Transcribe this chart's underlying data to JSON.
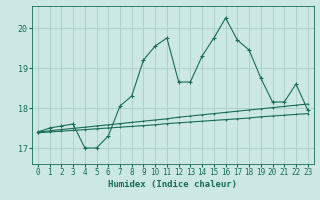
{
  "xlabel": "Humidex (Indice chaleur)",
  "ylabel": "",
  "background_color": "#cce8e4",
  "grid_color": "#aacccc",
  "line_color": "#1a6b5a",
  "xlim": [
    -0.5,
    23.5
  ],
  "ylim": [
    16.6,
    20.55
  ],
  "xticks": [
    0,
    1,
    2,
    3,
    4,
    5,
    6,
    7,
    8,
    9,
    10,
    11,
    12,
    13,
    14,
    15,
    16,
    17,
    18,
    19,
    20,
    21,
    22,
    23
  ],
  "yticks": [
    17,
    18,
    19,
    20
  ],
  "main_x": [
    0,
    1,
    2,
    3,
    4,
    5,
    6,
    7,
    8,
    9,
    10,
    11,
    12,
    13,
    14,
    15,
    16,
    17,
    18,
    19,
    20,
    21,
    22,
    23
  ],
  "main_y": [
    17.4,
    17.5,
    17.55,
    17.6,
    17.0,
    17.0,
    17.3,
    18.05,
    18.3,
    19.2,
    19.55,
    19.75,
    18.65,
    18.65,
    19.3,
    19.75,
    20.25,
    19.7,
    19.45,
    18.75,
    18.15,
    18.15,
    18.6,
    17.95
  ],
  "line2_x": [
    0,
    1,
    2,
    3,
    4,
    5,
    6,
    7,
    8,
    9,
    10,
    11,
    12,
    13,
    14,
    15,
    16,
    17,
    18,
    19,
    20,
    21,
    22,
    23
  ],
  "line2_y": [
    17.4,
    17.43,
    17.46,
    17.49,
    17.52,
    17.55,
    17.58,
    17.61,
    17.64,
    17.67,
    17.7,
    17.73,
    17.77,
    17.8,
    17.83,
    17.86,
    17.89,
    17.92,
    17.95,
    17.98,
    18.01,
    18.04,
    18.07,
    18.1
  ],
  "line3_x": [
    0,
    1,
    2,
    3,
    4,
    5,
    6,
    7,
    8,
    9,
    10,
    11,
    12,
    13,
    14,
    15,
    16,
    17,
    18,
    19,
    20,
    21,
    22,
    23
  ],
  "line3_y": [
    17.38,
    17.4,
    17.42,
    17.44,
    17.46,
    17.48,
    17.5,
    17.52,
    17.54,
    17.56,
    17.58,
    17.61,
    17.63,
    17.65,
    17.67,
    17.69,
    17.71,
    17.73,
    17.75,
    17.78,
    17.8,
    17.82,
    17.84,
    17.86
  ]
}
